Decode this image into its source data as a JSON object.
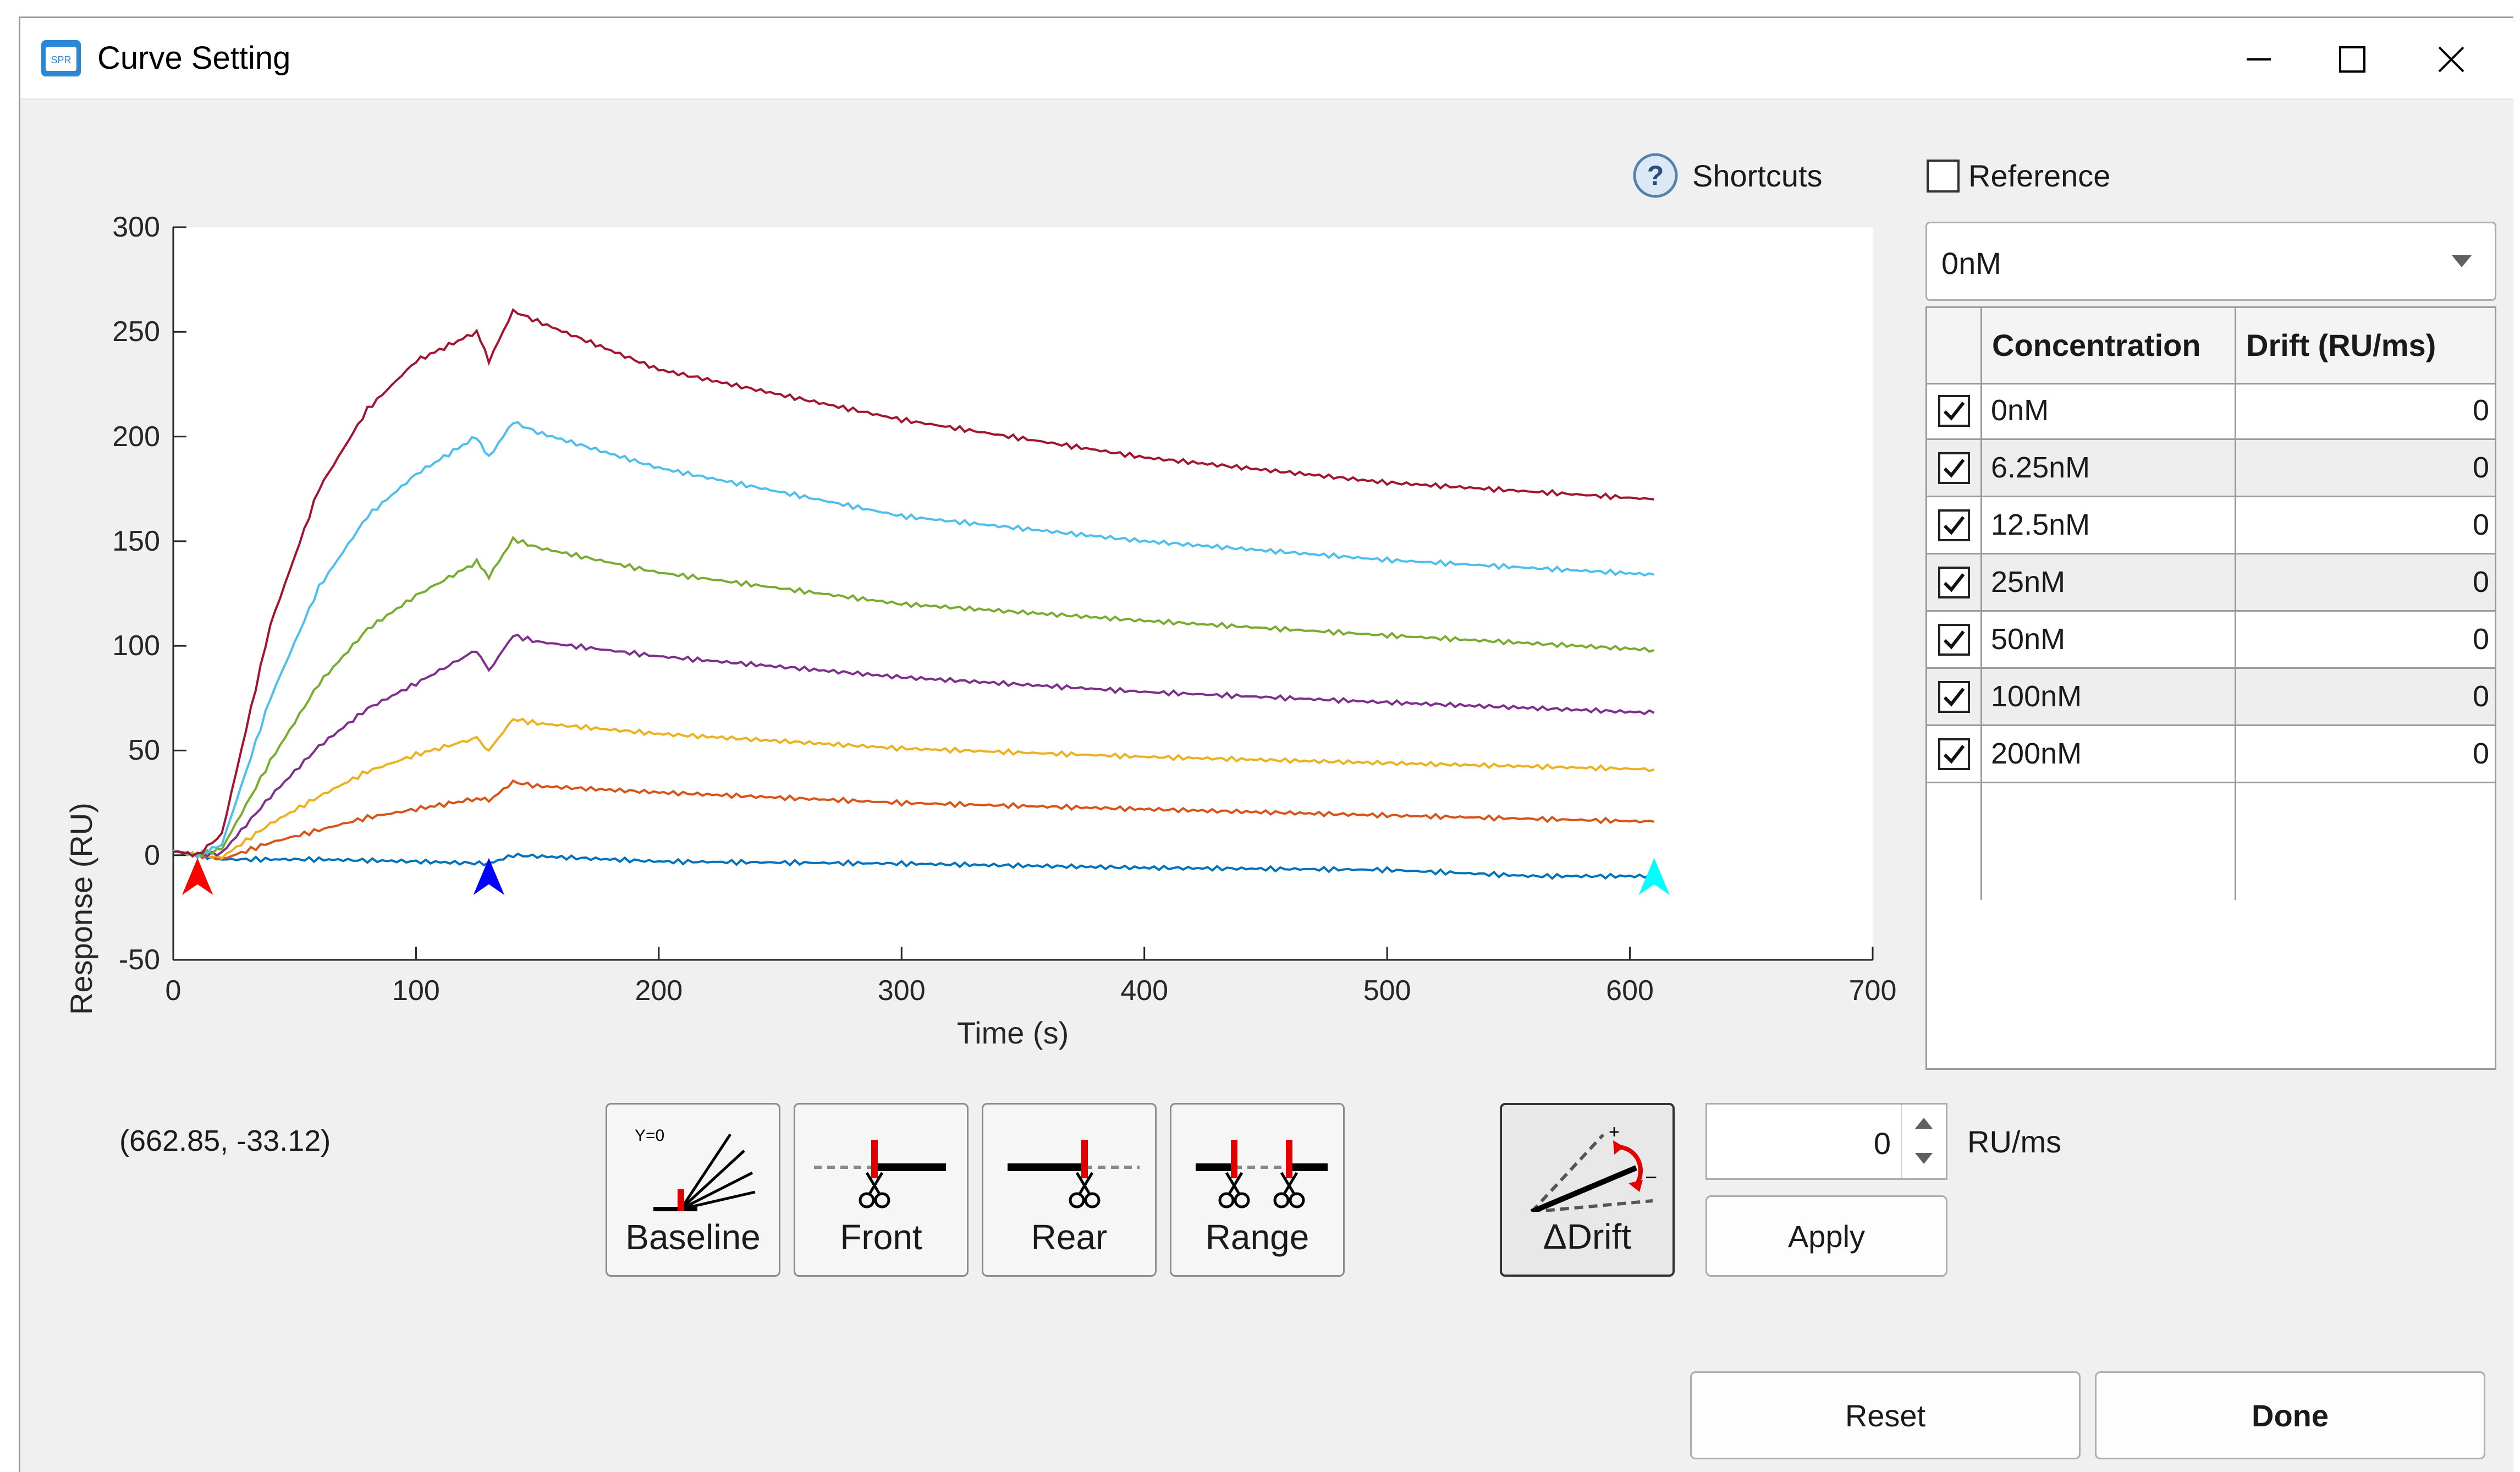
{
  "window": {
    "title": "Curve Setting",
    "icon_name": "spr-app-icon",
    "controls": [
      "minimize-icon",
      "maximize-icon",
      "close-icon"
    ]
  },
  "shortcuts": {
    "label": "Shortcuts",
    "icon_name": "help-circle-icon"
  },
  "reference": {
    "label": "Reference",
    "checked": false
  },
  "dropdown": {
    "selected": "0nM"
  },
  "table": {
    "headers": [
      "Concentration",
      "Drift (RU/ms)"
    ],
    "rows": [
      {
        "checked": true,
        "concentration": "0nM",
        "drift": "0"
      },
      {
        "checked": true,
        "concentration": "6.25nM",
        "drift": "0"
      },
      {
        "checked": true,
        "concentration": "12.5nM",
        "drift": "0"
      },
      {
        "checked": true,
        "concentration": "25nM",
        "drift": "0"
      },
      {
        "checked": true,
        "concentration": "50nM",
        "drift": "0"
      },
      {
        "checked": true,
        "concentration": "100nM",
        "drift": "0"
      },
      {
        "checked": true,
        "concentration": "200nM",
        "drift": "0"
      }
    ]
  },
  "chart_data": {
    "type": "line",
    "xlabel": "Time (s)",
    "ylabel": "Response (RU)",
    "xlim": [
      0,
      700
    ],
    "ylim": [
      -50,
      300
    ],
    "xticks": [
      "0",
      "100",
      "200",
      "300",
      "400",
      "500",
      "600",
      "700"
    ],
    "yticks": [
      "300",
      "250",
      "200",
      "150",
      "100",
      "50",
      "0",
      "-50"
    ],
    "grid": false,
    "series": [
      {
        "color": "#0072bd",
        "x": [
          0,
          10,
          20,
          60,
          100,
          130,
          140,
          200,
          300,
          400,
          500,
          560,
          610
        ],
        "y": [
          2,
          0,
          -2,
          -2,
          -3,
          -4,
          0,
          -3,
          -4,
          -6,
          -7,
          -10,
          -10
        ]
      },
      {
        "color": "#d95319",
        "x": [
          0,
          10,
          20,
          40,
          60,
          80,
          100,
          125,
          130,
          140,
          150,
          200,
          300,
          400,
          500,
          610
        ],
        "y": [
          2,
          0,
          -2,
          6,
          12,
          18,
          22,
          27,
          26,
          35,
          33,
          30,
          25,
          22,
          19,
          16
        ]
      },
      {
        "color": "#edb120",
        "x": [
          0,
          10,
          20,
          40,
          60,
          80,
          100,
          125,
          130,
          140,
          150,
          200,
          300,
          400,
          500,
          610
        ],
        "y": [
          2,
          0,
          -1,
          15,
          28,
          40,
          48,
          56,
          50,
          65,
          63,
          58,
          51,
          47,
          44,
          41
        ]
      },
      {
        "color": "#7e2f8e",
        "x": [
          0,
          10,
          20,
          40,
          60,
          80,
          100,
          125,
          130,
          140,
          150,
          200,
          300,
          400,
          500,
          610
        ],
        "y": [
          2,
          0,
          1,
          28,
          52,
          70,
          82,
          98,
          88,
          105,
          102,
          95,
          85,
          78,
          73,
          68
        ]
      },
      {
        "color": "#77ac30",
        "x": [
          0,
          10,
          20,
          40,
          60,
          80,
          100,
          125,
          130,
          140,
          150,
          200,
          300,
          400,
          500,
          610
        ],
        "y": [
          2,
          0,
          3,
          45,
          82,
          108,
          124,
          140,
          133,
          151,
          147,
          135,
          120,
          112,
          105,
          98
        ]
      },
      {
        "color": "#4dbeee",
        "x": [
          0,
          10,
          20,
          40,
          60,
          80,
          100,
          125,
          130,
          140,
          150,
          200,
          300,
          400,
          500,
          610
        ],
        "y": [
          2,
          0,
          5,
          75,
          128,
          162,
          182,
          200,
          190,
          207,
          202,
          185,
          162,
          150,
          141,
          134
        ]
      },
      {
        "color": "#a2142f",
        "x": [
          0,
          10,
          20,
          40,
          60,
          80,
          100,
          125,
          130,
          140,
          150,
          200,
          300,
          400,
          500,
          610
        ],
        "y": [
          2,
          0,
          10,
          110,
          175,
          213,
          236,
          250,
          236,
          260,
          255,
          232,
          208,
          190,
          178,
          170
        ]
      }
    ],
    "markers": [
      {
        "x": 10,
        "color": "#ff0000"
      },
      {
        "x": 130,
        "color": "#0000ff"
      },
      {
        "x": 610,
        "color": "#00ffff"
      }
    ]
  },
  "cursor_readout": "(662.85, -33.12)",
  "tools": [
    {
      "label": "Baseline",
      "icon_name": "baseline-icon"
    },
    {
      "label": "Front",
      "icon_name": "front-cut-icon"
    },
    {
      "label": "Rear",
      "icon_name": "rear-cut-icon"
    },
    {
      "label": "Range",
      "icon_name": "range-cut-icon"
    }
  ],
  "drift_tool": {
    "label": "ΔDrift",
    "icon_name": "delta-drift-icon"
  },
  "baseline_icon_text": "Y=0",
  "drift_input": {
    "value": "0",
    "unit": "RU/ms"
  },
  "buttons": {
    "apply": "Apply",
    "reset": "Reset",
    "done": "Done"
  }
}
